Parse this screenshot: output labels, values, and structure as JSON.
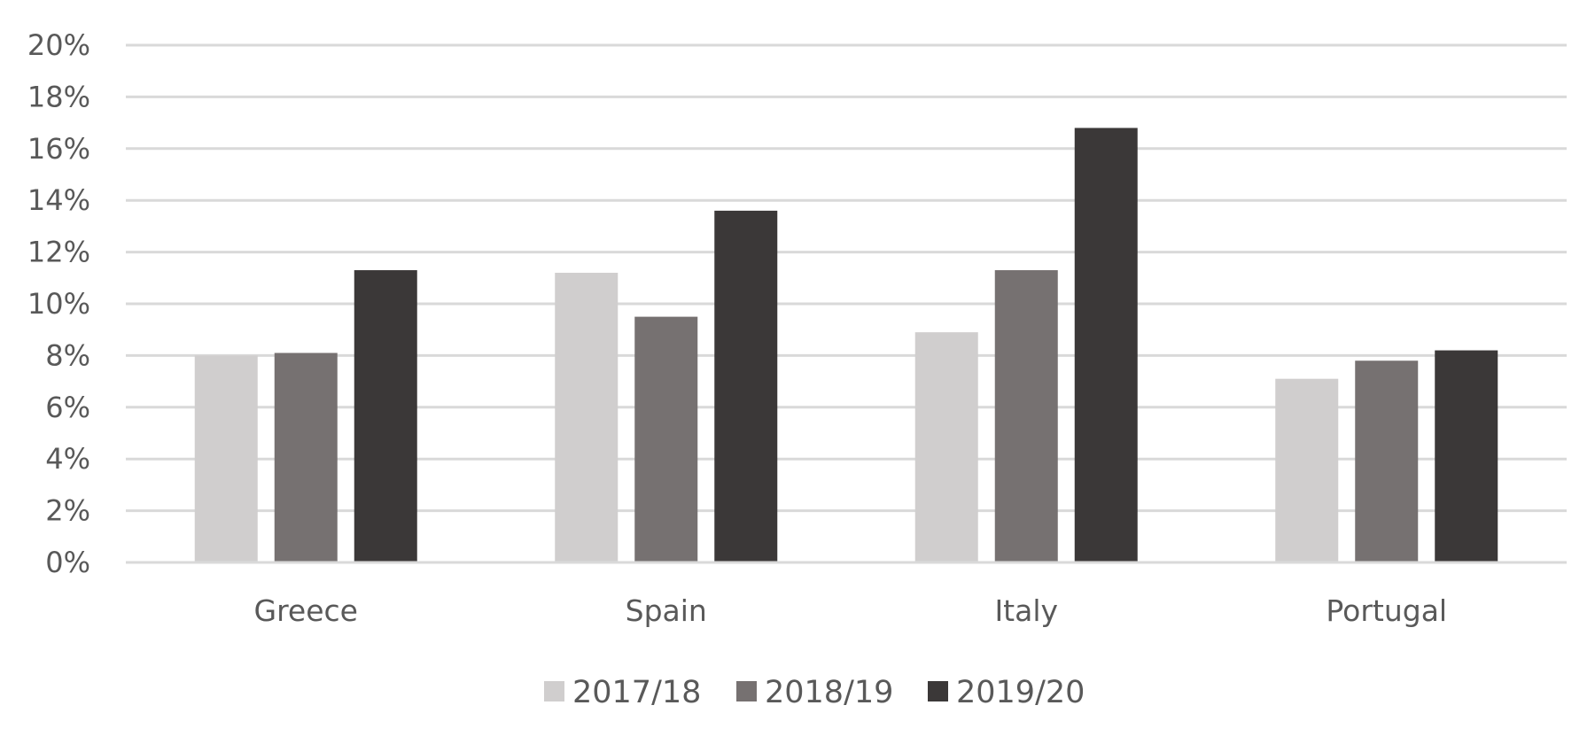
{
  "chart_data": {
    "type": "bar",
    "categories": [
      "Greece",
      "Spain",
      "Italy",
      "Portugal"
    ],
    "series": [
      {
        "name": "2017/18",
        "color": "#d0cece",
        "values": [
          8.0,
          11.2,
          8.9,
          7.1
        ]
      },
      {
        "name": "2018/19",
        "color": "#767171",
        "values": [
          8.1,
          9.5,
          11.3,
          7.8
        ]
      },
      {
        "name": "2019/20",
        "color": "#3b3838",
        "values": [
          11.3,
          13.6,
          16.8,
          8.2
        ]
      }
    ],
    "ylim": [
      0,
      20
    ],
    "ytick_step": 2,
    "ytick_labels": [
      "0%",
      "2%",
      "4%",
      "6%",
      "8%",
      "10%",
      "12%",
      "14%",
      "16%",
      "18%",
      "20%"
    ],
    "grid": true,
    "legend_position": "bottom",
    "title": "",
    "xlabel": "",
    "ylabel": ""
  }
}
